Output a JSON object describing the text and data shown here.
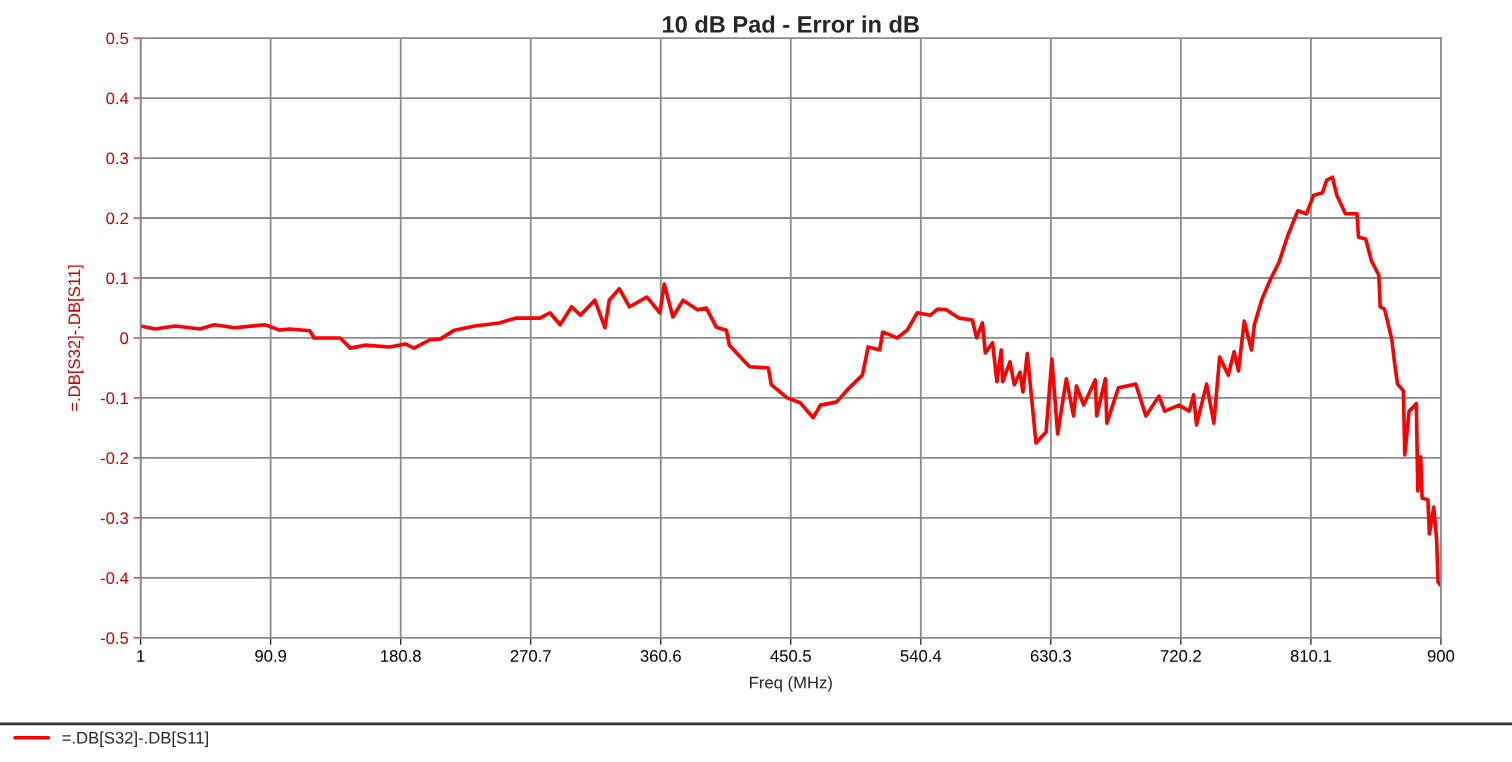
{
  "chart_data": {
    "type": "line",
    "title": "10 dB Pad - Error in dB",
    "xlabel": "Freq (MHz)",
    "ylabel": "=.DB[S32]-.DB[S11]",
    "xlim": [
      1,
      900
    ],
    "xticks": [
      1,
      90.9,
      180.8,
      270.7,
      360.6,
      450.5,
      540.4,
      630.3,
      720.2,
      810.1,
      900
    ],
    "ylim": [
      -0.5,
      0.5
    ],
    "yticks": [
      {
        "value": -0.5,
        "label": "-0.5"
      },
      {
        "value": -0.4,
        "label": "-0.4"
      },
      {
        "value": -0.3,
        "label": "-0.3"
      },
      {
        "value": -0.2,
        "label": "-0.2"
      },
      {
        "value": -0.1,
        "label": "-0.1"
      },
      0,
      0.1,
      0.2,
      0.3,
      0.4,
      0.5
    ],
    "grid": true,
    "legend": "bottom left",
    "series": [
      {
        "name": "=.DB[S32]-.DB[S11]",
        "color": "#ff0000",
        "x": [
          1,
          11,
          25,
          42,
          52,
          66,
          87,
          97,
          104,
          118,
          121,
          139,
          146,
          156,
          173,
          184,
          190,
          201,
          208,
          218,
          232,
          249,
          260,
          277,
          284,
          291,
          299,
          305,
          315,
          322,
          325,
          332,
          339,
          351,
          360,
          363,
          369,
          376,
          386,
          392,
          399,
          406,
          408,
          422,
          435,
          437,
          448,
          457,
          466,
          471,
          482,
          491,
          500,
          504,
          512,
          514,
          524,
          531,
          538,
          547,
          552,
          558,
          567,
          576,
          579,
          583,
          585,
          590,
          593,
          596,
          597,
          602,
          605,
          609,
          611,
          614,
          620,
          627,
          631,
          635,
          641,
          646,
          648,
          653,
          661,
          662,
          668,
          669,
          677,
          689,
          696,
          705,
          709,
          719,
          726,
          729,
          731,
          738,
          743,
          747,
          753,
          757,
          760,
          764,
          769,
          771,
          776,
          782,
          788,
          794,
          801,
          807,
          812,
          818,
          821,
          825,
          828,
          834,
          842,
          843,
          848,
          852,
          857,
          858,
          861,
          866,
          868,
          870,
          874,
          875,
          878,
          881,
          883,
          884,
          886,
          887,
          891,
          892,
          895,
          897,
          898,
          900
        ],
        "values": [
          0.02,
          0.015,
          0.02,
          0.015,
          0.022,
          0.017,
          0.022,
          0.013,
          0.015,
          0.012,
          0.0,
          0.0,
          -0.017,
          -0.012,
          -0.015,
          -0.01,
          -0.017,
          -0.003,
          -0.002,
          0.013,
          0.02,
          0.025,
          0.033,
          0.033,
          0.042,
          0.022,
          0.052,
          0.038,
          0.063,
          0.017,
          0.063,
          0.082,
          0.052,
          0.068,
          0.042,
          0.09,
          0.035,
          0.063,
          0.047,
          0.05,
          0.018,
          0.013,
          -0.012,
          -0.048,
          -0.05,
          -0.078,
          -0.1,
          -0.108,
          -0.133,
          -0.112,
          -0.107,
          -0.083,
          -0.062,
          -0.015,
          -0.02,
          0.01,
          0.0,
          0.013,
          0.042,
          0.038,
          0.048,
          0.047,
          0.033,
          0.03,
          0.0,
          0.025,
          -0.025,
          -0.008,
          -0.073,
          -0.02,
          -0.073,
          -0.04,
          -0.078,
          -0.057,
          -0.09,
          -0.026,
          -0.175,
          -0.157,
          -0.035,
          -0.16,
          -0.068,
          -0.13,
          -0.08,
          -0.112,
          -0.07,
          -0.13,
          -0.068,
          -0.142,
          -0.083,
          -0.077,
          -0.13,
          -0.097,
          -0.122,
          -0.112,
          -0.122,
          -0.095,
          -0.145,
          -0.077,
          -0.142,
          -0.032,
          -0.062,
          -0.023,
          -0.055,
          0.028,
          -0.02,
          0.022,
          0.063,
          0.097,
          0.126,
          0.17,
          0.212,
          0.207,
          0.238,
          0.242,
          0.263,
          0.268,
          0.238,
          0.207,
          0.207,
          0.168,
          0.165,
          0.128,
          0.105,
          0.052,
          0.048,
          -0.002,
          -0.043,
          -0.077,
          -0.088,
          -0.195,
          -0.122,
          -0.115,
          -0.109,
          -0.255,
          -0.198,
          -0.267,
          -0.27,
          -0.327,
          -0.282,
          -0.335,
          -0.407,
          -0.413
        ]
      }
    ]
  }
}
